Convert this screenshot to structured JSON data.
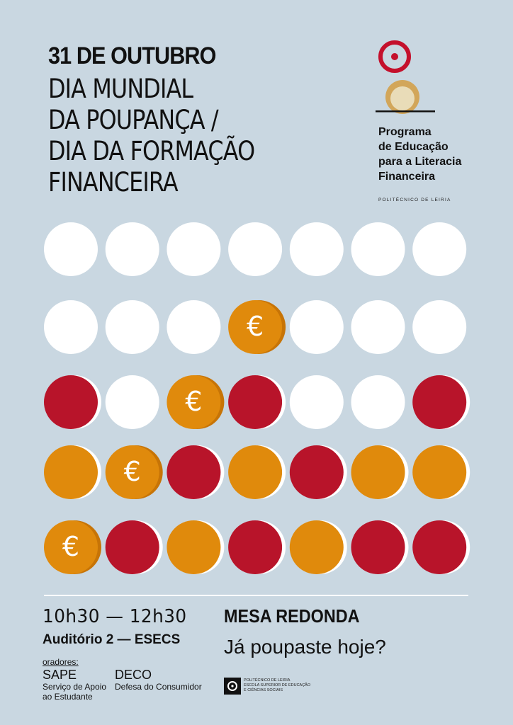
{
  "header": {
    "date": "31 DE OUTUBRO",
    "subtitle_lines": [
      "DIA MUNDIAL",
      "DA POUPANÇA /",
      "DIA DA FORMAÇÃO",
      "FINANCEIRA"
    ]
  },
  "program": {
    "name_lines": [
      "Programa",
      "de Educação",
      "para a Literacia",
      "Financeira"
    ],
    "institution": "POLITÉCNICO DE LEIRIA"
  },
  "coin_symbol": "€",
  "colors": {
    "background": "#c9d7e1",
    "white": "#ffffff",
    "red": "#b8142a",
    "orange": "#e08a0c",
    "red_logo": "#c4102c",
    "gold_logo": "#d2a65a"
  },
  "coin_rows": [
    [
      "white",
      "white",
      "white",
      "white",
      "white",
      "white",
      "white"
    ],
    [
      "white",
      "white",
      "white",
      "orange-euro",
      "white",
      "white",
      "white"
    ],
    [
      "red",
      "white",
      "orange-euro",
      "red",
      "white",
      "white",
      "red"
    ],
    [
      "orange",
      "orange-euro",
      "red",
      "orange",
      "red",
      "orange",
      "orange"
    ],
    [
      "orange-euro",
      "red",
      "orange",
      "red",
      "orange",
      "red",
      "red"
    ]
  ],
  "event": {
    "time": "10h30 — 12h30",
    "venue": "Auditório 2 — ESECS",
    "speakers_label": "oradores:",
    "speakers": [
      {
        "code": "SAPE",
        "desc_lines": [
          "Serviço de Apoio",
          "ao Estudante"
        ]
      },
      {
        "code": "DECO",
        "desc_lines": [
          "Defesa do Consumidor"
        ]
      }
    ],
    "type": "MESA REDONDA",
    "title": "Já poupaste hoje?"
  },
  "footer_institution": {
    "lines": [
      "POLITÉCNICO DE LEIRIA",
      "ESCOLA SUPERIOR DE EDUCAÇÃO",
      "E CIÊNCIAS SOCIAIS"
    ]
  }
}
